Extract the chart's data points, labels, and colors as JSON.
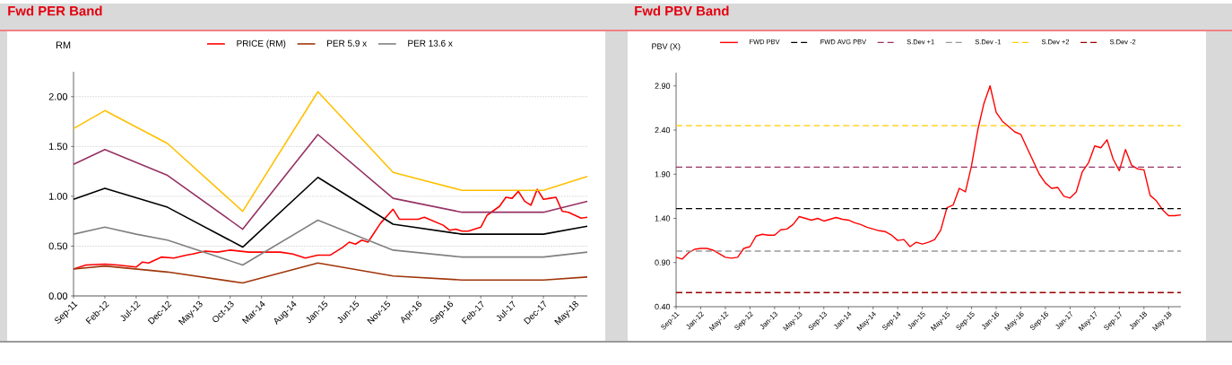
{
  "chart_data": [
    {
      "type": "line",
      "title": "Fwd PER Band",
      "ylabel": "RM",
      "xlim": [
        "2011-09",
        "2018-07"
      ],
      "xticks": [
        {
          "value": "2011-09",
          "label": "Sep-11"
        },
        {
          "value": "2012-02",
          "label": "Feb-12"
        },
        {
          "value": "2012-07",
          "label": "Jul-12"
        },
        {
          "value": "2012-12",
          "label": "Dec-12"
        },
        {
          "value": "2013-05",
          "label": "May-13"
        },
        {
          "value": "2013-10",
          "label": "Oct-13"
        },
        {
          "value": "2014-03",
          "label": "Mar-14"
        },
        {
          "value": "2014-08",
          "label": "Aug-14"
        },
        {
          "value": "2015-01",
          "label": "Jan-15"
        },
        {
          "value": "2015-06",
          "label": "Jun-15"
        },
        {
          "value": "2015-11",
          "label": "Nov-15"
        },
        {
          "value": "2016-04",
          "label": "Apr-16"
        },
        {
          "value": "2016-09",
          "label": "Sep-16"
        },
        {
          "value": "2017-02",
          "label": "Feb-17"
        },
        {
          "value": "2017-07",
          "label": "Jul-17"
        },
        {
          "value": "2017-12",
          "label": "Dec-17"
        },
        {
          "value": "2018-05",
          "label": "May-18"
        }
      ],
      "ylim": [
        0,
        2.25
      ],
      "yticks": [
        {
          "value": 0,
          "label": "0.00"
        },
        {
          "value": 0.5,
          "label": "0.50"
        },
        {
          "value": 1,
          "label": "1.00"
        },
        {
          "value": 1.5,
          "label": "1.50"
        },
        {
          "value": 2,
          "label": "2.00"
        }
      ],
      "grid": "y",
      "legend": "top",
      "series": [
        {
          "name": "PRICE (RM)",
          "color": "#ff0000",
          "x": [
            "2011-09",
            "2011-11",
            "2012-02",
            "2012-04",
            "2012-07",
            "2012-08",
            "2012-09",
            "2012-11",
            "2013-01",
            "2013-03",
            "2013-04",
            "2013-06",
            "2013-08",
            "2013-10",
            "2014-01",
            "2014-06",
            "2014-08",
            "2014-10",
            "2014-12",
            "2015-02",
            "2015-04",
            "2015-05",
            "2015-06",
            "2015-07",
            "2015-08",
            "2015-10",
            "2015-12",
            "2016-01",
            "2016-04",
            "2016-05",
            "2016-08",
            "2016-09",
            "2016-10",
            "2016-11",
            "2016-12",
            "2017-02",
            "2017-03",
            "2017-05",
            "2017-06",
            "2017-07",
            "2017-08",
            "2017-09",
            "2017-10",
            "2017-11",
            "2017-12",
            "2018-01",
            "2018-02",
            "2018-03",
            "2018-04",
            "2018-06",
            "2018-07"
          ],
          "values": [
            0.27,
            0.31,
            0.32,
            0.31,
            0.29,
            0.34,
            0.33,
            0.39,
            0.38,
            0.41,
            0.42,
            0.45,
            0.44,
            0.46,
            0.44,
            0.44,
            0.42,
            0.38,
            0.41,
            0.41,
            0.49,
            0.54,
            0.52,
            0.56,
            0.54,
            0.73,
            0.87,
            0.77,
            0.77,
            0.79,
            0.71,
            0.66,
            0.67,
            0.65,
            0.65,
            0.69,
            0.81,
            0.9,
            0.99,
            0.98,
            1.05,
            0.95,
            0.91,
            1.07,
            0.97,
            0.98,
            0.99,
            0.85,
            0.84,
            0.78,
            0.79
          ]
        },
        {
          "name": "PER 5.9 x",
          "color": "#a0360b",
          "x": [
            "2011-09",
            "2012-02",
            "2012-12",
            "2013-12",
            "2014-12",
            "2015-12",
            "2016-11",
            "2017-12",
            "2018-07"
          ],
          "values": [
            0.27,
            0.3,
            0.24,
            0.13,
            0.33,
            0.2,
            0.16,
            0.16,
            0.19
          ]
        },
        {
          "name": "PER 13.6 x",
          "color": "#808080",
          "x": [
            "2011-09",
            "2012-02",
            "2012-07",
            "2012-12",
            "2013-12",
            "2014-12",
            "2015-12",
            "2016-11",
            "2017-12",
            "2018-07"
          ],
          "values": [
            0.62,
            0.69,
            0.62,
            0.56,
            0.31,
            0.76,
            0.46,
            0.39,
            0.39,
            0.44
          ]
        },
        {
          "color": "#000000",
          "x": [
            "2011-09",
            "2012-02",
            "2012-12",
            "2013-12",
            "2014-12",
            "2015-12",
            "2016-11",
            "2017-12",
            "2018-07"
          ],
          "values": [
            0.97,
            1.08,
            0.89,
            0.49,
            1.19,
            0.72,
            0.62,
            0.62,
            0.7
          ]
        },
        {
          "color": "#953163",
          "x": [
            "2011-09",
            "2012-02",
            "2012-12",
            "2013-12",
            "2014-12",
            "2015-12",
            "2016-11",
            "2017-12",
            "2018-07"
          ],
          "values": [
            1.32,
            1.47,
            1.21,
            0.67,
            1.62,
            0.98,
            0.84,
            0.84,
            0.95
          ]
        },
        {
          "color": "#ffc000",
          "x": [
            "2011-09",
            "2012-02",
            "2012-12",
            "2013-12",
            "2014-12",
            "2015-12",
            "2016-11",
            "2017-12",
            "2018-07"
          ],
          "values": [
            1.68,
            1.86,
            1.53,
            0.85,
            2.05,
            1.24,
            1.06,
            1.06,
            1.2
          ]
        }
      ]
    },
    {
      "type": "line",
      "title": "Fwd PBV Band",
      "ylabel": "PBV (X)",
      "xlim": [
        "2011-09",
        "2018-07"
      ],
      "xticks": [
        {
          "value": "2011-09",
          "label": "Sep-11"
        },
        {
          "value": "2012-01",
          "label": "Jan-12"
        },
        {
          "value": "2012-05",
          "label": "May-12"
        },
        {
          "value": "2012-09",
          "label": "Sep-12"
        },
        {
          "value": "2013-01",
          "label": "Jan-13"
        },
        {
          "value": "2013-05",
          "label": "May-13"
        },
        {
          "value": "2013-09",
          "label": "Sep-13"
        },
        {
          "value": "2014-01",
          "label": "Jan-14"
        },
        {
          "value": "2014-05",
          "label": "May-14"
        },
        {
          "value": "2014-09",
          "label": "Sep-14"
        },
        {
          "value": "2015-01",
          "label": "Jan-15"
        },
        {
          "value": "2015-05",
          "label": "May-15"
        },
        {
          "value": "2015-09",
          "label": "Sep-15"
        },
        {
          "value": "2016-01",
          "label": "Jan-16"
        },
        {
          "value": "2016-05",
          "label": "May-16"
        },
        {
          "value": "2016-09",
          "label": "Sep-16"
        },
        {
          "value": "2017-01",
          "label": "Jan-17"
        },
        {
          "value": "2017-05",
          "label": "May-17"
        },
        {
          "value": "2017-09",
          "label": "Sep-17"
        },
        {
          "value": "2018-01",
          "label": "Jan-18"
        },
        {
          "value": "2018-05",
          "label": "May-18"
        }
      ],
      "ylim": [
        0.4,
        3.05
      ],
      "yticks": [
        {
          "value": 0.4,
          "label": "0.40"
        },
        {
          "value": 0.9,
          "label": "0.90"
        },
        {
          "value": 1.4,
          "label": "1.40"
        },
        {
          "value": 1.9,
          "label": "1.90"
        },
        {
          "value": 2.4,
          "label": "2.40"
        },
        {
          "value": 2.9,
          "label": "2.90"
        }
      ],
      "legend": "top",
      "series": [
        {
          "name": "FWD PBV",
          "color": "#ff0000",
          "x": [
            "2011-09",
            "2011-10",
            "2011-11",
            "2011-12",
            "2012-01",
            "2012-02",
            "2012-03",
            "2012-04",
            "2012-05",
            "2012-06",
            "2012-07",
            "2012-08",
            "2012-09",
            "2012-10",
            "2012-11",
            "2012-12",
            "2013-01",
            "2013-02",
            "2013-03",
            "2013-04",
            "2013-05",
            "2013-06",
            "2013-07",
            "2013-08",
            "2013-09",
            "2013-10",
            "2013-11",
            "2013-12",
            "2014-01",
            "2014-02",
            "2014-03",
            "2014-04",
            "2014-05",
            "2014-06",
            "2014-07",
            "2014-08",
            "2014-09",
            "2014-10",
            "2014-11",
            "2014-12",
            "2015-01",
            "2015-02",
            "2015-03",
            "2015-04",
            "2015-05",
            "2015-06",
            "2015-07",
            "2015-08",
            "2015-09",
            "2015-10",
            "2015-11",
            "2015-12",
            "2016-01",
            "2016-02",
            "2016-03",
            "2016-04",
            "2016-05",
            "2016-06",
            "2016-07",
            "2016-08",
            "2016-09",
            "2016-10",
            "2016-11",
            "2016-12",
            "2017-01",
            "2017-02",
            "2017-03",
            "2017-04",
            "2017-05",
            "2017-06",
            "2017-07",
            "2017-08",
            "2017-09",
            "2017-10",
            "2017-11",
            "2017-12",
            "2018-01",
            "2018-02",
            "2018-03",
            "2018-04",
            "2018-05",
            "2018-06",
            "2018-07"
          ],
          "values": [
            0.96,
            0.94,
            1.01,
            1.05,
            1.06,
            1.06,
            1.04,
            1.0,
            0.96,
            0.95,
            0.96,
            1.06,
            1.08,
            1.2,
            1.22,
            1.21,
            1.21,
            1.27,
            1.28,
            1.33,
            1.42,
            1.4,
            1.38,
            1.4,
            1.37,
            1.39,
            1.41,
            1.39,
            1.38,
            1.35,
            1.33,
            1.3,
            1.28,
            1.26,
            1.25,
            1.21,
            1.15,
            1.16,
            1.08,
            1.13,
            1.11,
            1.13,
            1.16,
            1.27,
            1.52,
            1.55,
            1.74,
            1.7,
            2.0,
            2.4,
            2.7,
            2.9,
            2.6,
            2.5,
            2.44,
            2.38,
            2.35,
            2.2,
            2.05,
            1.9,
            1.8,
            1.74,
            1.75,
            1.65,
            1.63,
            1.7,
            1.93,
            2.03,
            2.22,
            2.2,
            2.29,
            2.07,
            1.94,
            2.18,
            2.0,
            1.96,
            1.95,
            1.66,
            1.6,
            1.5,
            1.43,
            1.43,
            1.44
          ]
        },
        {
          "name": "FWD AVG PBV",
          "color": "#000000",
          "line_style": "dashed",
          "x": [
            "2011-09",
            "2018-07"
          ],
          "values": [
            1.51,
            1.51
          ]
        },
        {
          "name": "S.Dev +1",
          "color": "#993366",
          "line_style": "dashed",
          "x": [
            "2011-09",
            "2018-07"
          ],
          "values": [
            1.98,
            1.98
          ]
        },
        {
          "name": "S.Dev -1",
          "color": "#999999",
          "line_style": "dashed",
          "x": [
            "2011-09",
            "2018-07"
          ],
          "values": [
            1.03,
            1.03
          ]
        },
        {
          "name": "S.Dev +2",
          "color": "#ffcc00",
          "line_style": "dashed",
          "x": [
            "2011-09",
            "2018-07"
          ],
          "values": [
            2.45,
            2.45
          ]
        },
        {
          "name": "S.Dev -2",
          "color": "#990000",
          "line_style": "dashed",
          "x": [
            "2011-09",
            "2018-07"
          ],
          "values": [
            0.56,
            0.56
          ]
        }
      ]
    }
  ]
}
